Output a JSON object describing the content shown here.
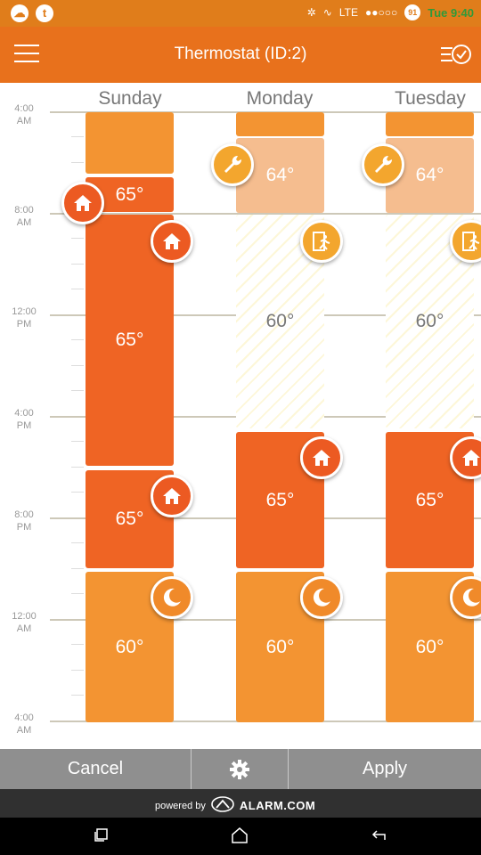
{
  "status_bar": {
    "left_icons": [
      "chat-icon",
      "t-app-icon"
    ],
    "notif_glyph_1": "☁",
    "notif_glyph_2": "t",
    "network": "LTE",
    "battery": "91",
    "time": "Tue 9:40"
  },
  "header": {
    "title": "Thermostat (ID:2)",
    "menu_icon": "hamburger-menu-icon",
    "schedule_icon": "schedule-list-icon"
  },
  "days": [
    {
      "name": "Sunday"
    },
    {
      "name": "Monday"
    },
    {
      "name": "Tuesday"
    }
  ],
  "time_labels": [
    {
      "hour": "4:00",
      "period": "AM"
    },
    {
      "hour": "8:00",
      "period": "AM"
    },
    {
      "hour": "12:00",
      "period": "PM"
    },
    {
      "hour": "4:00",
      "period": "PM"
    },
    {
      "hour": "8:00",
      "period": "PM"
    },
    {
      "hour": "12:00",
      "period": "AM"
    },
    {
      "hour": "4:00",
      "period": "AM"
    }
  ],
  "schedule": {
    "sunday": [
      {
        "temp": "",
        "style": "light"
      },
      {
        "temp": "65°",
        "style": "dark"
      },
      {
        "temp": "65°",
        "style": "dark",
        "icon": "home-icon"
      },
      {
        "temp": "65°",
        "style": "dark",
        "icon": "home-icon"
      },
      {
        "temp": "60°",
        "style": "light",
        "icon": "moon-icon"
      }
    ],
    "monday": [
      {
        "temp": "",
        "style": "light"
      },
      {
        "temp": "64°",
        "style": "pale",
        "icon": "wrench-icon"
      },
      {
        "temp": "60°",
        "style": "hatched",
        "icon": "away-icon"
      },
      {
        "temp": "65°",
        "style": "dark",
        "icon": "home-icon"
      },
      {
        "temp": "60°",
        "style": "light",
        "icon": "moon-icon"
      }
    ],
    "tuesday": [
      {
        "temp": "",
        "style": "light"
      },
      {
        "temp": "64°",
        "style": "pale",
        "icon": "wrench-icon"
      },
      {
        "temp": "60°",
        "style": "hatched",
        "icon": "away-icon"
      },
      {
        "temp": "65°",
        "style": "dark",
        "icon": "home-icon"
      },
      {
        "temp": "60°",
        "style": "light",
        "icon": "moon-icon"
      }
    ],
    "floating_icon": "home-icon"
  },
  "bottom": {
    "cancel_label": "Cancel",
    "settings_icon": "gear-icon",
    "apply_label": "Apply"
  },
  "footer": {
    "powered_by": "powered by",
    "brand": "ALARM.COM",
    "brand_icon": "alarm-com-logo-icon"
  },
  "nav": {
    "icons": [
      "recent-apps-icon",
      "home-nav-icon",
      "back-icon"
    ]
  },
  "colors": {
    "header": "#e8711c",
    "block_dark": "#ef6424",
    "block_light": "#f39432",
    "block_pale": "#f5bd8f",
    "bottom_bar": "#8f8f8f"
  }
}
